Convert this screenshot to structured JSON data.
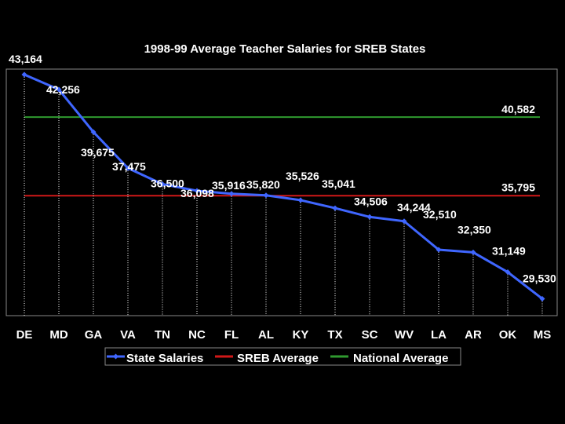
{
  "chart_data": {
    "type": "line",
    "title": "1998-99 Average Teacher Salaries for SREB States",
    "categories": [
      "DE",
      "MD",
      "GA",
      "VA",
      "TN",
      "NC",
      "FL",
      "AL",
      "KY",
      "TX",
      "SC",
      "WV",
      "LA",
      "AR",
      "OK",
      "MS"
    ],
    "series": [
      {
        "name": "State Salaries",
        "color": "#3f66ff",
        "values": [
          43164,
          42256,
          39675,
          37475,
          36500,
          36098,
          35916,
          35820,
          35526,
          35041,
          34506,
          34244,
          32510,
          32350,
          31149,
          29530
        ],
        "labels": [
          "43,164",
          "42,256",
          "39,675",
          "37,475",
          "36,500",
          "36,098",
          "35,916",
          "35,820",
          "35,526",
          "35,041",
          "34,506",
          "34,244",
          "32,510",
          "32,350",
          "31,149",
          "29,530"
        ]
      },
      {
        "name": "SREB Average",
        "color": "#d01818",
        "value": 35795,
        "label": "35,795"
      },
      {
        "name": "National Average",
        "color": "#2f9a2f",
        "value": 40582,
        "label": "40,582"
      }
    ],
    "ylim": [
      28500,
      43500
    ],
    "grid": false,
    "legend": "bottom"
  }
}
